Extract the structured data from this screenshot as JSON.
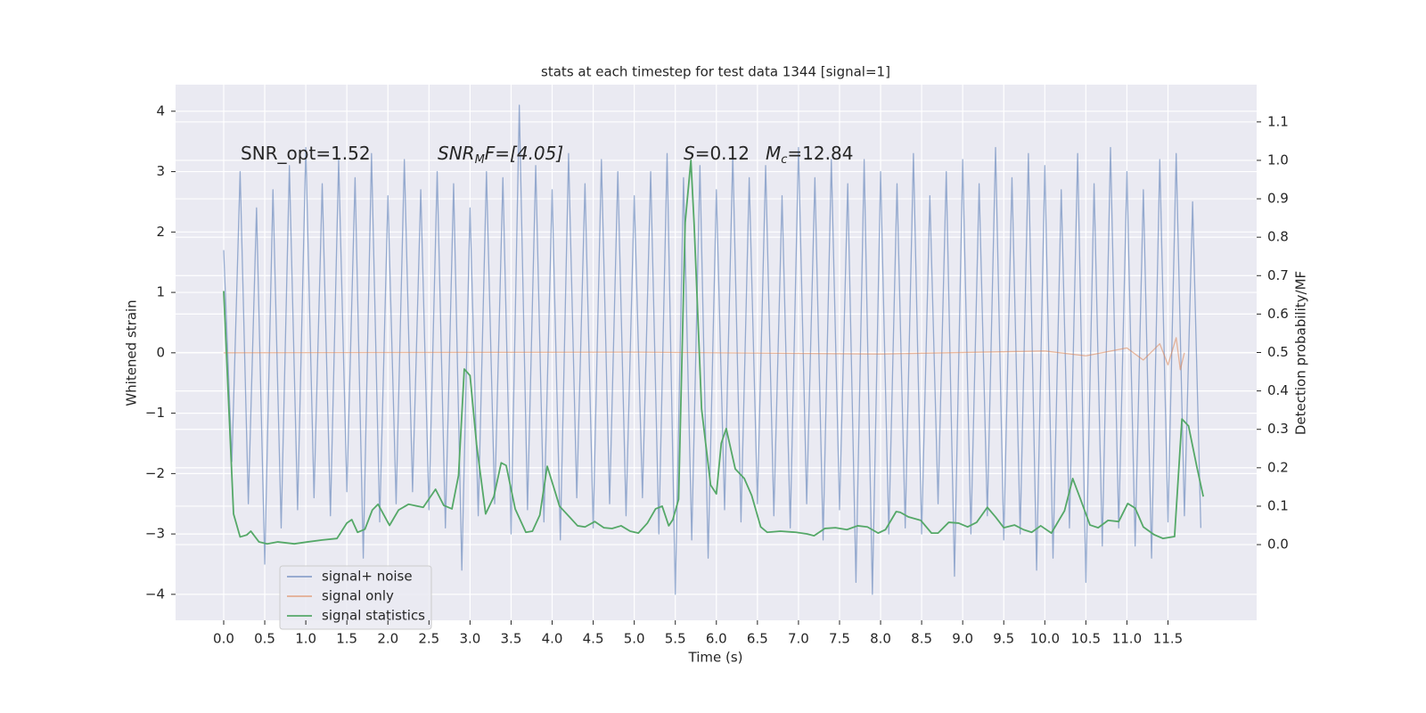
{
  "chart_data": {
    "type": "line",
    "title": "stats at each timestep for test data 1344 [signal=1]",
    "xlabel": "Time (s)",
    "ylabel": "Whitened strain",
    "y2label": "Detection probability/MF",
    "annotations": [
      [
        "SNR_opt=1.52"
      ],
      [
        "SNR",
        "M",
        "F=[4.05]"
      ],
      [
        "S",
        "=0.12"
      ],
      [
        "M",
        "c",
        "=12.84"
      ]
    ],
    "grid": true,
    "legend": "lower left",
    "xlim": [
      -0.586,
      12.58
    ],
    "xticks": [
      {
        "value": 0,
        "label": "0.0"
      },
      0.5,
      {
        "value": 1,
        "label": "1.0"
      },
      1.5,
      {
        "value": 2,
        "label": "2.0"
      },
      2.5,
      {
        "value": 3,
        "label": "3.0"
      },
      3.5,
      {
        "value": 4,
        "label": "4.0"
      },
      4.5,
      {
        "value": 5,
        "label": "5.0"
      },
      5.5,
      {
        "value": 6,
        "label": "6.0"
      },
      6.5,
      {
        "value": 7,
        "label": "7.0"
      },
      7.5,
      {
        "value": 8,
        "label": "8.0"
      },
      8.5,
      {
        "value": 9,
        "label": "9.0"
      },
      9.5,
      {
        "value": 10,
        "label": "10.0"
      },
      10.5,
      {
        "value": 11,
        "label": "11.0"
      },
      11.5
    ],
    "ylim": [
      -4.43,
      4.44
    ],
    "yticks": [
      {
        "value": -4,
        "label": "−4"
      },
      {
        "value": -3,
        "label": "−3"
      },
      {
        "value": -2,
        "label": "−2"
      },
      {
        "value": -1,
        "label": "−1"
      },
      0,
      1,
      2,
      3,
      4
    ],
    "y2lim": [
      -0.197,
      1.197
    ],
    "y2ticks": [
      {
        "value": 0,
        "label": "0.0"
      },
      0.1,
      0.2,
      0.3,
      0.4,
      0.5,
      0.6,
      0.7,
      0.8,
      0.9,
      {
        "value": 1,
        "label": "1.0"
      },
      1.1
    ],
    "series": [
      {
        "name": "signal+ noise",
        "color": "#4c72b0",
        "x": [
          0,
          0.1,
          0.2,
          0.3,
          0.4,
          0.5,
          0.6,
          0.7,
          0.8,
          0.9,
          1,
          1.1,
          1.2,
          1.3,
          1.4,
          1.5,
          1.6,
          1.7,
          1.8,
          1.9,
          2,
          2.1,
          2.2,
          2.3,
          2.4,
          2.5,
          2.6,
          2.7,
          2.8,
          2.9,
          3,
          3.1,
          3.2,
          3.3,
          3.4,
          3.5,
          3.6,
          3.7,
          3.8,
          3.9,
          4,
          4.1,
          4.2,
          4.3,
          4.4,
          4.5,
          4.6,
          4.7,
          4.8,
          4.9,
          5,
          5.1,
          5.2,
          5.3,
          5.4,
          5.5,
          5.6,
          5.7,
          5.8,
          5.9,
          6,
          6.1,
          6.2,
          6.3,
          6.4,
          6.5,
          6.6,
          6.7,
          6.8,
          6.9,
          7,
          7.1,
          7.2,
          7.3,
          7.4,
          7.5,
          7.6,
          7.7,
          7.8,
          7.9,
          8,
          8.1,
          8.2,
          8.3,
          8.4,
          8.5,
          8.6,
          8.7,
          8.8,
          8.9,
          9,
          9.1,
          9.2,
          9.3,
          9.4,
          9.5,
          9.6,
          9.7,
          9.8,
          9.9,
          10,
          10.1,
          10.2,
          10.3,
          10.4,
          10.5,
          10.6,
          10.7,
          10.8,
          10.9,
          11,
          11.1,
          11.2,
          11.3,
          11.4,
          11.5,
          11.6,
          11.7,
          11.8,
          11.9
        ],
        "values": [
          1.7,
          -1.8,
          3.0,
          -2.5,
          2.4,
          -3.5,
          2.7,
          -2.9,
          3.1,
          -2.6,
          3.4,
          -2.4,
          2.8,
          -2.7,
          3.2,
          -2.3,
          2.9,
          -3.4,
          3.3,
          -2.8,
          2.6,
          -2.5,
          3.2,
          -2.3,
          2.7,
          -2.6,
          3.0,
          -2.9,
          2.8,
          -3.6,
          2.4,
          -2.7,
          3.0,
          -2.5,
          2.9,
          -3.0,
          4.1,
          -2.6,
          3.1,
          -2.8,
          2.7,
          -3.1,
          3.3,
          -2.4,
          2.8,
          -2.9,
          3.2,
          -2.5,
          3.0,
          -2.7,
          2.6,
          -2.4,
          3.0,
          -3.0,
          3.3,
          -4.0,
          2.9,
          -3.1,
          3.1,
          -3.4,
          2.7,
          -2.6,
          3.3,
          -2.8,
          2.9,
          -2.5,
          3.1,
          -2.7,
          2.6,
          -2.9,
          3.4,
          -2.5,
          2.9,
          -3.1,
          3.2,
          -2.6,
          2.8,
          -3.8,
          3.2,
          -4.0,
          3.0,
          -3.0,
          2.8,
          -2.9,
          3.3,
          -3.0,
          2.6,
          -2.5,
          3.0,
          -3.7,
          3.2,
          -3.0,
          2.8,
          -2.7,
          3.4,
          -3.1,
          2.9,
          -3.0,
          3.3,
          -3.6,
          3.1,
          -3.4,
          2.7,
          -2.9,
          3.3,
          -3.8,
          2.8,
          -3.2,
          3.4,
          -2.9,
          3.0,
          -3.2,
          2.7,
          -3.4,
          3.2,
          -2.8,
          3.3,
          -2.7,
          2.5,
          -2.9
        ]
      },
      {
        "name": "signal only",
        "color": "#dd8452",
        "x": [
          0,
          5,
          8,
          10,
          10.5,
          11,
          11.2,
          11.4,
          11.5,
          11.6,
          11.65,
          11.7
        ],
        "values": [
          0,
          0.01,
          -0.02,
          0.03,
          -0.05,
          0.08,
          -0.12,
          0.15,
          -0.2,
          0.25,
          -0.28,
          0
        ]
      },
      {
        "name": "signal statistics",
        "color": "#55a868",
        "axis": "y2",
        "x": [
          0,
          0.12,
          0.2,
          0.28,
          0.33,
          0.43,
          0.53,
          0.66,
          0.86,
          1.02,
          1.2,
          1.38,
          1.5,
          1.56,
          1.63,
          1.72,
          1.81,
          1.88,
          2.02,
          2.13,
          2.25,
          2.43,
          2.58,
          2.68,
          2.78,
          2.86,
          2.93,
          3.0,
          3.08,
          3.19,
          3.29,
          3.38,
          3.44,
          3.55,
          3.68,
          3.76,
          3.85,
          3.94,
          4.09,
          4.22,
          4.31,
          4.4,
          4.52,
          4.63,
          4.73,
          4.84,
          4.95,
          5.05,
          5.16,
          5.26,
          5.34,
          5.42,
          5.47,
          5.54,
          5.62,
          5.69,
          5.73,
          5.82,
          5.93,
          6.0,
          6.06,
          6.12,
          6.23,
          6.34,
          6.43,
          6.54,
          6.62,
          6.78,
          6.97,
          7.1,
          7.19,
          7.32,
          7.45,
          7.59,
          7.72,
          7.84,
          7.97,
          8.06,
          8.19,
          8.24,
          8.34,
          8.49,
          8.62,
          8.7,
          8.83,
          8.95,
          9.06,
          9.17,
          9.3,
          9.4,
          9.5,
          9.63,
          9.74,
          9.84,
          9.95,
          10.08,
          10.24,
          10.34,
          10.43,
          10.55,
          10.65,
          10.77,
          10.9,
          11.01,
          11.1,
          11.2,
          11.33,
          11.44,
          11.58,
          11.67,
          11.75,
          11.85,
          11.93
        ],
        "values": [
          0.66,
          0.08,
          0.02,
          0.025,
          0.035,
          0.007,
          0.002,
          0.007,
          0.002,
          0.007,
          0.012,
          0.016,
          0.056,
          0.065,
          0.032,
          0.04,
          0.09,
          0.105,
          0.05,
          0.09,
          0.105,
          0.097,
          0.144,
          0.102,
          0.093,
          0.18,
          0.457,
          0.44,
          0.26,
          0.08,
          0.125,
          0.213,
          0.206,
          0.093,
          0.032,
          0.035,
          0.077,
          0.204,
          0.1,
          0.07,
          0.049,
          0.046,
          0.06,
          0.044,
          0.042,
          0.049,
          0.035,
          0.03,
          0.056,
          0.093,
          0.1,
          0.049,
          0.065,
          0.118,
          0.838,
          1.0,
          0.83,
          0.353,
          0.155,
          0.132,
          0.264,
          0.302,
          0.197,
          0.172,
          0.128,
          0.046,
          0.032,
          0.035,
          0.032,
          0.028,
          0.023,
          0.042,
          0.044,
          0.039,
          0.049,
          0.046,
          0.03,
          0.039,
          0.086,
          0.084,
          0.072,
          0.063,
          0.03,
          0.03,
          0.058,
          0.056,
          0.046,
          0.058,
          0.097,
          0.072,
          0.044,
          0.051,
          0.039,
          0.032,
          0.049,
          0.03,
          0.088,
          0.172,
          0.121,
          0.051,
          0.044,
          0.063,
          0.06,
          0.107,
          0.095,
          0.046,
          0.026,
          0.016,
          0.021,
          0.327,
          0.309,
          0.204,
          0.125
        ]
      }
    ]
  }
}
